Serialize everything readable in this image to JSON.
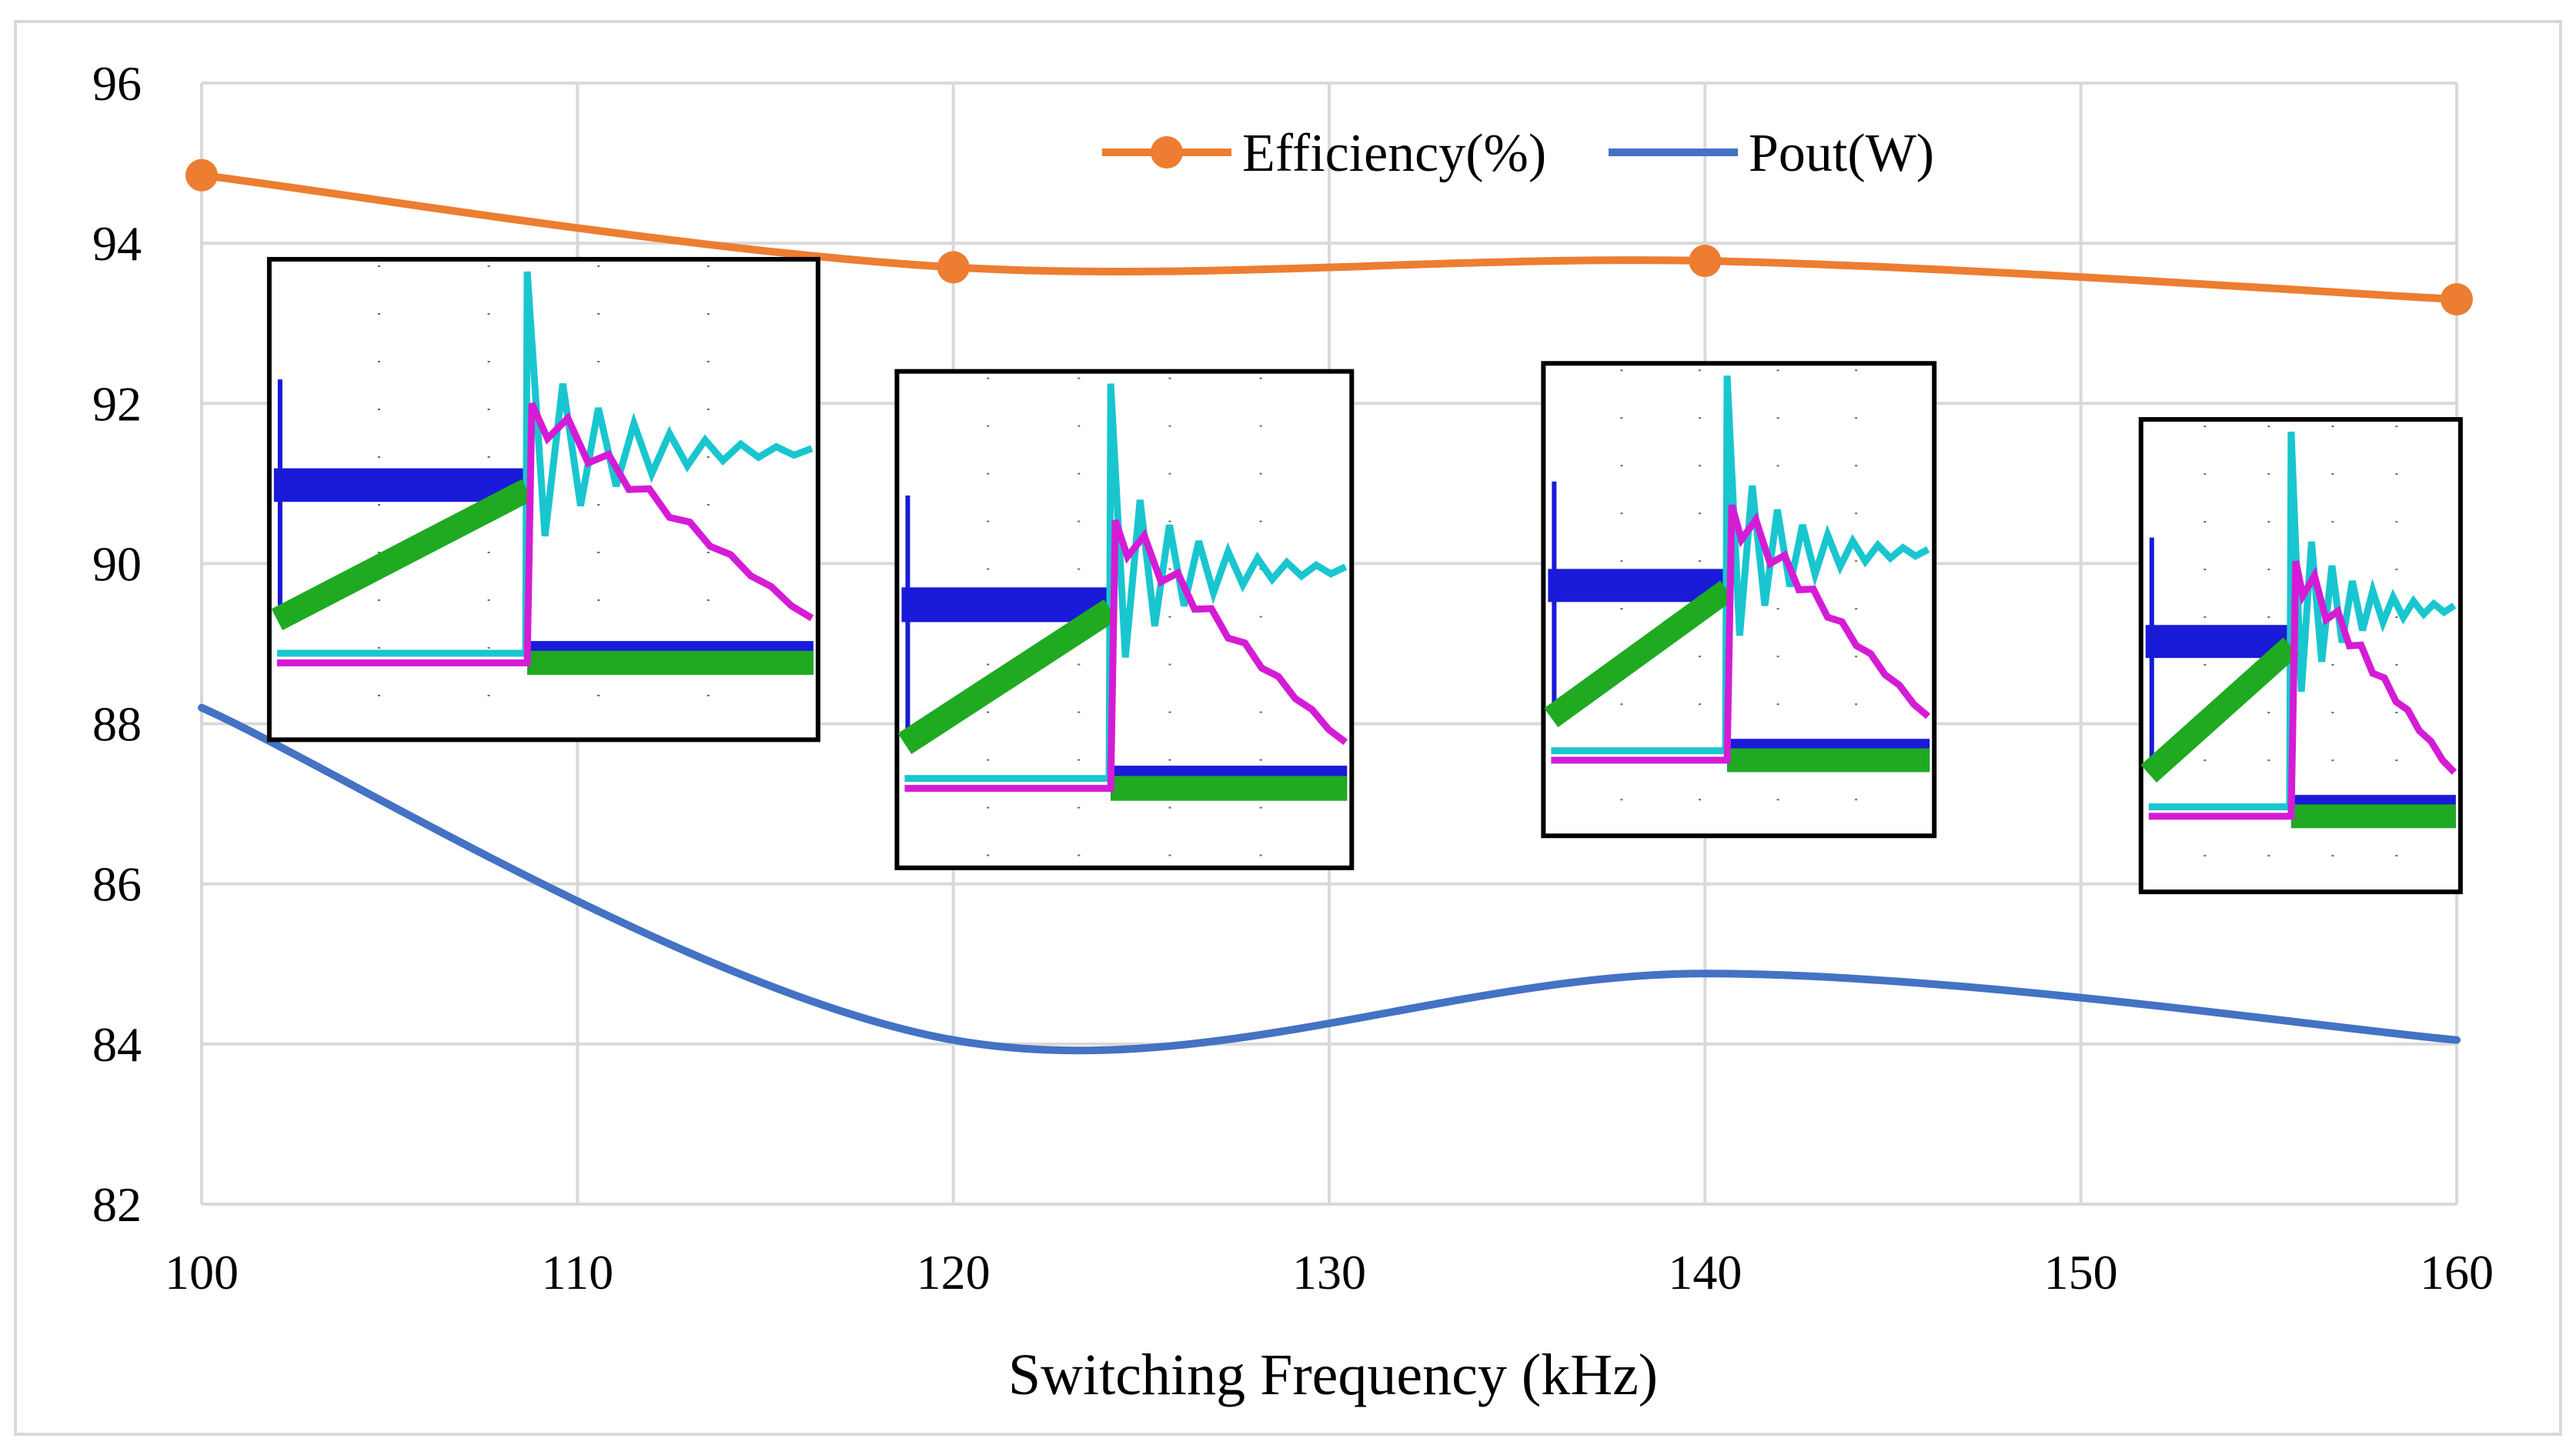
{
  "chart_data": {
    "type": "line",
    "title": "",
    "xlabel": "Switching Frequency (kHz)",
    "ylabel": "",
    "x": [
      100,
      120,
      140,
      160
    ],
    "xlim": [
      100,
      160
    ],
    "ylim": [
      82,
      96
    ],
    "x_ticks": [
      "100",
      "110",
      "120",
      "130",
      "140",
      "150",
      "160"
    ],
    "y_ticks": [
      "82",
      "84",
      "86",
      "88",
      "90",
      "92",
      "94",
      "96"
    ],
    "grid": true,
    "legend_position": "top-center",
    "series": [
      {
        "name": "Efficiency(%)",
        "color": "#ED7D31",
        "markers": true,
        "smooth": true,
        "values": [
          94.85,
          93.7,
          93.78,
          93.3
        ]
      },
      {
        "name": "Pout(W)",
        "color": "#4472C4",
        "markers": false,
        "smooth": true,
        "values": [
          88.2,
          84.05,
          84.88,
          84.05
        ]
      }
    ],
    "insets": [
      {
        "name": "waveform-100khz",
        "x_range": [
          101.8,
          116.4
        ],
        "y_range": [
          87.8,
          93.8
        ]
      },
      {
        "name": "waveform-120khz",
        "x_range": [
          118.5,
          130.6
        ],
        "y_range": [
          86.2,
          92.4
        ]
      },
      {
        "name": "waveform-140khz",
        "x_range": [
          135.7,
          146.1
        ],
        "y_range": [
          86.6,
          92.5
        ]
      },
      {
        "name": "waveform-160khz",
        "x_range": [
          151.6,
          160.1
        ],
        "y_range": [
          85.9,
          91.8
        ]
      }
    ]
  }
}
